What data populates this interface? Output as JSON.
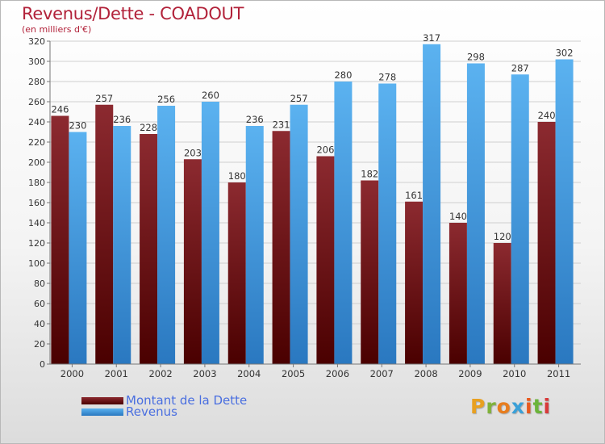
{
  "title": "Revenus/Dette - COADOUT",
  "subtitle": "(en milliers d'€)",
  "legend": {
    "dette": "Montant de la Dette",
    "revenus": "Revenus"
  },
  "logo_text": "Proxiti",
  "colors": {
    "title": "#b2223a",
    "dette": "#7a1f24",
    "revenus": "#4aa3e8",
    "legend_text": "#4a6fe0",
    "grid": "#cfcfcf"
  },
  "chart_data": {
    "type": "bar",
    "categories": [
      "2000",
      "2001",
      "2002",
      "2003",
      "2004",
      "2005",
      "2006",
      "2007",
      "2008",
      "2009",
      "2010",
      "2011"
    ],
    "series": [
      {
        "name": "Montant de la Dette",
        "values": [
          246,
          257,
          228,
          203,
          180,
          231,
          206,
          182,
          161,
          140,
          120,
          240
        ]
      },
      {
        "name": "Revenus",
        "values": [
          230,
          236,
          256,
          260,
          236,
          257,
          280,
          278,
          317,
          298,
          287,
          302
        ]
      }
    ],
    "ylim": [
      0,
      320
    ],
    "yticks": [
      0,
      20,
      40,
      60,
      80,
      100,
      120,
      140,
      160,
      180,
      200,
      220,
      240,
      260,
      280,
      300,
      320
    ],
    "grid": true,
    "legend_position": "bottom-left"
  }
}
